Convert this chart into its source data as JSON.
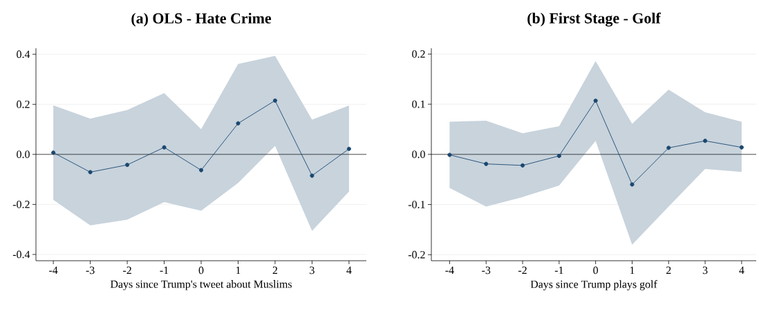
{
  "chart_data": [
    {
      "type": "line",
      "title": "(a) OLS - Hate Crime",
      "xlabel": "Days since Trump's tweet about Muslims",
      "x": [
        -4,
        -3,
        -2,
        -1,
        0,
        1,
        2,
        3,
        4
      ],
      "series": [
        {
          "color": "#1a476f",
          "values": [
            0.007,
            -0.071,
            -0.042,
            0.028,
            -0.063,
            0.124,
            0.215,
            -0.085,
            0.022
          ],
          "lower": [
            -0.182,
            -0.284,
            -0.261,
            -0.191,
            -0.225,
            -0.114,
            0.034,
            -0.306,
            -0.149
          ],
          "upper": [
            0.196,
            0.143,
            0.177,
            0.245,
            0.101,
            0.361,
            0.394,
            0.139,
            0.195
          ]
        }
      ],
      "xlim": [
        -4.47,
        4.47
      ],
      "ylim": [
        -0.425,
        0.424
      ],
      "xticks": [
        -4,
        -3,
        -2,
        -1,
        0,
        1,
        2,
        3,
        4
      ],
      "yticks": [
        -0.4,
        -0.2,
        {
          "value": 0,
          "label": "0.0"
        },
        0.2,
        0.4
      ],
      "ref_lines": [
        {
          "axis": "y",
          "value": 0,
          "color": "#000000"
        }
      ],
      "grid": "y",
      "marker": "circle"
    },
    {
      "type": "line",
      "title": "(b) First Stage - Golf",
      "xlabel": "Days since Trump plays golf",
      "x": [
        -4,
        -3,
        -2,
        -1,
        0,
        1,
        2,
        3,
        4
      ],
      "series": [
        {
          "color": "#1a476f",
          "values": [
            -0.001,
            -0.019,
            -0.022,
            -0.003,
            0.107,
            -0.06,
            0.013,
            0.027,
            0.014
          ],
          "lower": [
            -0.067,
            -0.104,
            -0.085,
            -0.062,
            0.027,
            -0.18,
            -0.104,
            -0.029,
            -0.035
          ],
          "upper": [
            0.065,
            0.067,
            0.042,
            0.056,
            0.186,
            0.061,
            0.129,
            0.084,
            0.065
          ]
        }
      ],
      "xlim": [
        -4.5,
        4.4
      ],
      "ylim": [
        -0.212,
        0.2115
      ],
      "xticks": [
        -4,
        -3,
        -2,
        -1,
        0,
        1,
        2,
        3,
        4
      ],
      "yticks": [
        -0.2,
        -0.1,
        {
          "value": 0,
          "label": "0.0"
        },
        0.1,
        0.2
      ],
      "ref_lines": [
        {
          "axis": "y",
          "value": 0,
          "color": "#000000"
        }
      ],
      "grid": "y",
      "marker": "circle"
    }
  ]
}
